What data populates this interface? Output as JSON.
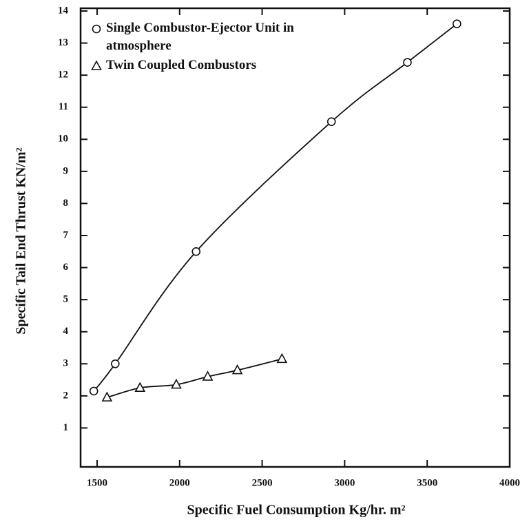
{
  "chart_data": {
    "type": "scatter",
    "x_label": "Specific Fuel Consumption Kg/hr. m²",
    "y_label": "Specific Tail  End Thrust KN/m²",
    "xlim": [
      1400,
      4000
    ],
    "xticks": [
      1500,
      2000,
      2500,
      3000,
      3500,
      4000
    ],
    "ylim": [
      0,
      14
    ],
    "yticks": [
      1,
      2,
      3,
      4,
      5,
      6,
      7,
      8,
      9,
      10,
      11,
      12,
      13,
      14
    ],
    "series": [
      {
        "name": "Single Combustor-Ejector Unit in atmosphere",
        "color": "#111111",
        "marker": "circle",
        "x": [
          1480,
          1610,
          2100,
          2920,
          3380,
          3680
        ],
        "values": [
          2.15,
          3.0,
          6.5,
          10.55,
          12.4,
          13.6
        ]
      },
      {
        "name": "Twin Coupled Combustors",
        "color": "#111111",
        "marker": "triangle",
        "x": [
          1560,
          1760,
          1980,
          2170,
          2350,
          2620
        ],
        "values": [
          1.95,
          2.25,
          2.35,
          2.6,
          2.8,
          3.15
        ]
      }
    ]
  }
}
